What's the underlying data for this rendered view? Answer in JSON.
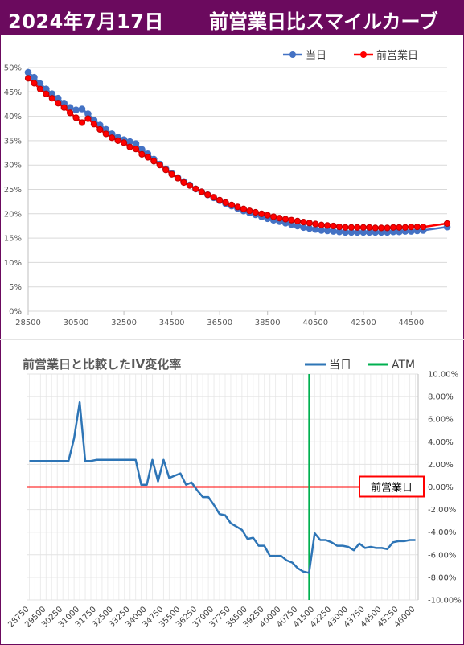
{
  "header": {
    "date": "2024年7月17日",
    "title": "前営業日比スマイルカーブ"
  },
  "chart_data": [
    {
      "type": "line",
      "title": "",
      "xlabel": "",
      "ylabel": "",
      "xlim": [
        28500,
        46000
      ],
      "ylim": [
        0,
        50
      ],
      "y_unit": "%",
      "x_ticks": [
        28500,
        30500,
        32500,
        34500,
        36500,
        38500,
        40500,
        42500,
        44500
      ],
      "y_ticks": [
        "0%",
        "5%",
        "10%",
        "15%",
        "20%",
        "25%",
        "30%",
        "35%",
        "40%",
        "45%",
        "50%"
      ],
      "legend_position": "top-right",
      "grid": true,
      "series": [
        {
          "name": "当日",
          "color": "#4472c4",
          "points": [
            [
              28500,
              49.0
            ],
            [
              28750,
              48.0
            ],
            [
              29000,
              46.7
            ],
            [
              29250,
              45.6
            ],
            [
              29500,
              44.6
            ],
            [
              29750,
              43.7
            ],
            [
              30000,
              42.7
            ],
            [
              30250,
              41.8
            ],
            [
              30500,
              41.3
            ],
            [
              30750,
              41.5
            ],
            [
              31000,
              40.5
            ],
            [
              31250,
              39.2
            ],
            [
              31500,
              38.2
            ],
            [
              31750,
              37.3
            ],
            [
              32000,
              36.4
            ],
            [
              32250,
              35.7
            ],
            [
              32500,
              35.2
            ],
            [
              32750,
              34.8
            ],
            [
              33000,
              34.4
            ],
            [
              33250,
              33.2
            ],
            [
              33500,
              32.3
            ],
            [
              33750,
              31.2
            ],
            [
              34000,
              30.2
            ],
            [
              34250,
              29.2
            ],
            [
              34500,
              28.3
            ],
            [
              34750,
              27.4
            ],
            [
              35000,
              26.6
            ],
            [
              35250,
              25.9
            ],
            [
              35500,
              25.1
            ],
            [
              35750,
              24.5
            ],
            [
              36000,
              23.9
            ],
            [
              36250,
              23.3
            ],
            [
              36500,
              22.7
            ],
            [
              36750,
              22.1
            ],
            [
              37000,
              21.6
            ],
            [
              37250,
              21.1
            ],
            [
              37500,
              20.6
            ],
            [
              37750,
              20.2
            ],
            [
              38000,
              19.8
            ],
            [
              38250,
              19.4
            ],
            [
              38500,
              19.0
            ],
            [
              38750,
              18.7
            ],
            [
              39000,
              18.4
            ],
            [
              39250,
              18.1
            ],
            [
              39500,
              17.8
            ],
            [
              39750,
              17.5
            ],
            [
              40000,
              17.2
            ],
            [
              40250,
              17.0
            ],
            [
              40500,
              16.8
            ],
            [
              40750,
              16.6
            ],
            [
              41000,
              16.5
            ],
            [
              41250,
              16.4
            ],
            [
              41500,
              16.3
            ],
            [
              41750,
              16.2
            ],
            [
              42000,
              16.2
            ],
            [
              42250,
              16.2
            ],
            [
              42500,
              16.2
            ],
            [
              42750,
              16.2
            ],
            [
              43000,
              16.2
            ],
            [
              43250,
              16.2
            ],
            [
              43500,
              16.2
            ],
            [
              43750,
              16.3
            ],
            [
              44000,
              16.3
            ],
            [
              44250,
              16.4
            ],
            [
              44500,
              16.4
            ],
            [
              44750,
              16.5
            ],
            [
              45000,
              16.6
            ],
            [
              46000,
              17.3
            ]
          ]
        },
        {
          "name": "前営業日",
          "color": "#ff0000",
          "points": [
            [
              28500,
              47.8
            ],
            [
              28750,
              46.8
            ],
            [
              29000,
              45.6
            ],
            [
              29250,
              44.6
            ],
            [
              29500,
              43.7
            ],
            [
              29750,
              42.7
            ],
            [
              30000,
              41.8
            ],
            [
              30250,
              40.7
            ],
            [
              30500,
              39.7
            ],
            [
              30750,
              38.7
            ],
            [
              31000,
              39.5
            ],
            [
              31250,
              38.4
            ],
            [
              31500,
              37.3
            ],
            [
              31750,
              36.4
            ],
            [
              32000,
              35.6
            ],
            [
              32250,
              35.0
            ],
            [
              32500,
              34.6
            ],
            [
              32750,
              33.7
            ],
            [
              33000,
              33.3
            ],
            [
              33250,
              32.2
            ],
            [
              33500,
              31.6
            ],
            [
              33750,
              30.8
            ],
            [
              34000,
              30.0
            ],
            [
              34250,
              29.0
            ],
            [
              34500,
              28.1
            ],
            [
              34750,
              27.3
            ],
            [
              35000,
              26.4
            ],
            [
              35250,
              25.8
            ],
            [
              35500,
              25.1
            ],
            [
              35750,
              24.5
            ],
            [
              36000,
              23.9
            ],
            [
              36250,
              23.4
            ],
            [
              36500,
              22.8
            ],
            [
              36750,
              22.3
            ],
            [
              37000,
              21.8
            ],
            [
              37250,
              21.4
            ],
            [
              37500,
              21.0
            ],
            [
              37750,
              20.6
            ],
            [
              38000,
              20.3
            ],
            [
              38250,
              20.0
            ],
            [
              38500,
              19.7
            ],
            [
              38750,
              19.4
            ],
            [
              39000,
              19.1
            ],
            [
              39250,
              18.9
            ],
            [
              39500,
              18.7
            ],
            [
              39750,
              18.5
            ],
            [
              40000,
              18.3
            ],
            [
              40250,
              18.1
            ],
            [
              40500,
              17.9
            ],
            [
              40750,
              17.7
            ],
            [
              41000,
              17.6
            ],
            [
              41250,
              17.5
            ],
            [
              41500,
              17.3
            ],
            [
              41750,
              17.2
            ],
            [
              42000,
              17.2
            ],
            [
              42250,
              17.2
            ],
            [
              42500,
              17.2
            ],
            [
              42750,
              17.2
            ],
            [
              43000,
              17.1
            ],
            [
              43250,
              17.1
            ],
            [
              43500,
              17.1
            ],
            [
              43750,
              17.2
            ],
            [
              44000,
              17.2
            ],
            [
              44250,
              17.2
            ],
            [
              44500,
              17.3
            ],
            [
              44750,
              17.3
            ],
            [
              45000,
              17.3
            ],
            [
              46000,
              18.0
            ]
          ]
        }
      ]
    },
    {
      "type": "line",
      "title": "前営業日と比較したIV変化率",
      "xlabel": "",
      "ylabel": "",
      "ylim": [
        -10,
        10
      ],
      "y_unit": "%",
      "y_axis_side": "right",
      "y_ticks": [
        "10.00%",
        "8.00%",
        "6.00%",
        "4.00%",
        "2.00%",
        "0.00%",
        "-2.00%",
        "-4.00%",
        "-6.00%",
        "-8.00%",
        "-10.00%"
      ],
      "categories": [
        "28750",
        "29000",
        "29250",
        "29500",
        "29750",
        "30000",
        "30250",
        "30500",
        "30750",
        "31000",
        "31250",
        "31500",
        "31750",
        "32000",
        "32250",
        "32500",
        "32750",
        "33000",
        "33250",
        "33500",
        "33750",
        "34000",
        "34250",
        "34500",
        "34750",
        "35000",
        "35250",
        "35500",
        "35750",
        "36000",
        "36250",
        "36500",
        "36750",
        "37000",
        "37250",
        "37500",
        "37750",
        "38000",
        "38250",
        "38500",
        "38750",
        "39000",
        "39250",
        "39500",
        "39750",
        "40000",
        "40250",
        "40500",
        "40750",
        "41000",
        "41250",
        "41500",
        "41750",
        "42000",
        "42250",
        "42500",
        "42750",
        "43000",
        "43250",
        "43500",
        "43750",
        "44000",
        "44250",
        "44500",
        "44750",
        "45000",
        "45250",
        "45500",
        "45750",
        "46000"
      ],
      "x_tick_labels": [
        "28750",
        "29500",
        "30250",
        "31000",
        "31750",
        "32500",
        "33250",
        "34000",
        "34750",
        "35500",
        "36250",
        "37000",
        "37750",
        "38500",
        "39250",
        "40000",
        "40750",
        "41500",
        "42250",
        "43000",
        "43750",
        "44500",
        "45250",
        "46000"
      ],
      "legend_position": "top-right",
      "grid": true,
      "series": [
        {
          "name": "当日",
          "color": "#2e75b6",
          "values": [
            2.3,
            2.3,
            2.3,
            2.3,
            2.3,
            2.3,
            2.3,
            2.3,
            4.3,
            7.5,
            2.3,
            2.3,
            2.4,
            2.4,
            2.4,
            2.4,
            2.4,
            2.4,
            2.4,
            2.4,
            0.2,
            0.2,
            2.4,
            0.5,
            2.4,
            0.8,
            1.0,
            1.2,
            0.2,
            0.4,
            -0.3,
            -0.9,
            -0.9,
            -1.6,
            -2.4,
            -2.5,
            -3.2,
            -3.5,
            -3.8,
            -4.6,
            -4.5,
            -5.2,
            -5.2,
            -6.1,
            -6.1,
            -6.1,
            -6.5,
            -6.7,
            -7.2,
            -7.5,
            -7.6,
            -4.1,
            -4.7,
            -4.7,
            -4.9,
            -5.2,
            -5.2,
            -5.3,
            -5.6,
            -5.0,
            -5.4,
            -5.3,
            -5.4,
            -5.4,
            -5.5,
            -4.9,
            -4.8,
            -4.8,
            -4.7,
            -4.7
          ]
        },
        {
          "name": "ATM",
          "color": "#00b050",
          "x_category": "41250"
        }
      ],
      "reference_line": {
        "label": "前営業日",
        "value": 0,
        "color": "#ff0000"
      }
    }
  ]
}
